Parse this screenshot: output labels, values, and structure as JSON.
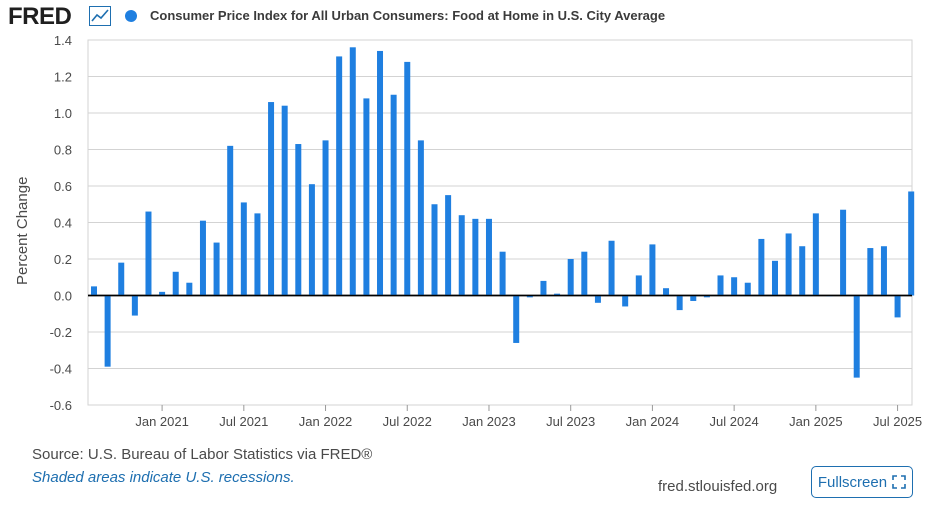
{
  "header": {
    "logo_text": "FRED",
    "logo_icon": "line-chart-icon",
    "series_title": "Consumer Price Index for All Urban Consumers: Food at Home in U.S. City Average"
  },
  "colors": {
    "series": "#1f7fe0",
    "link": "#1e6fb0",
    "grid": "#d3d3d3",
    "zero_line": "#000000"
  },
  "footer": {
    "source": "Source: U.S. Bureau of Labor Statistics via FRED®",
    "recession_note": "Shaded areas indicate U.S. recessions.",
    "site": "fred.stlouisfed.org",
    "fullscreen_label": "Fullscreen",
    "fullscreen_icon": "expand-icon"
  },
  "chart_data": {
    "type": "bar",
    "title": "Consumer Price Index for All Urban Consumers: Food at Home in U.S. City Average",
    "ylabel": "Percent Change",
    "xlabel": "",
    "ylim": [
      -0.6,
      1.4
    ],
    "grid": true,
    "legend": "top-left",
    "yticks": [
      1.4,
      1.2,
      1.0,
      0.8,
      0.6,
      0.4,
      0.2,
      0.0,
      -0.2,
      -0.4,
      -0.6
    ],
    "ytick_labels": [
      "1.4",
      "1.2",
      "1.0",
      "0.8",
      "0.6",
      "0.4",
      "0.2",
      "0.0",
      "-0.2",
      "-0.4",
      "-0.6"
    ],
    "xtick_labels": [
      {
        "date": "2021-01",
        "label": "Jan 2021"
      },
      {
        "date": "2021-07",
        "label": "Jul 2021"
      },
      {
        "date": "2022-01",
        "label": "Jan 2022"
      },
      {
        "date": "2022-07",
        "label": "Jul 2022"
      },
      {
        "date": "2023-01",
        "label": "Jan 2023"
      },
      {
        "date": "2023-07",
        "label": "Jul 2023"
      },
      {
        "date": "2024-01",
        "label": "Jan 2024"
      },
      {
        "date": "2024-07",
        "label": "Jul 2024"
      },
      {
        "date": "2025-01",
        "label": "Jan 2025"
      },
      {
        "date": "2025-07",
        "label": "Jul 2025"
      }
    ],
    "series": [
      {
        "dates": [
          "2020-08",
          "2020-09",
          "2020-10",
          "2020-11",
          "2020-12",
          "2021-01",
          "2021-02",
          "2021-03",
          "2021-04",
          "2021-05",
          "2021-06",
          "2021-07",
          "2021-08",
          "2021-09",
          "2021-10",
          "2021-11",
          "2021-12",
          "2022-01",
          "2022-02",
          "2022-03",
          "2022-04",
          "2022-05",
          "2022-06",
          "2022-07",
          "2022-08",
          "2022-09",
          "2022-10",
          "2022-11",
          "2022-12",
          "2023-01",
          "2023-02",
          "2023-03",
          "2023-04",
          "2023-05",
          "2023-06",
          "2023-07",
          "2023-08",
          "2023-09",
          "2023-10",
          "2023-11",
          "2023-12",
          "2024-01",
          "2024-02",
          "2024-03",
          "2024-04",
          "2024-05",
          "2024-06",
          "2024-07",
          "2024-08",
          "2024-09",
          "2024-10",
          "2024-11",
          "2024-12",
          "2025-01",
          "2025-02",
          "2025-03",
          "2025-04",
          "2025-05",
          "2025-06",
          "2025-07",
          "2025-08"
        ],
        "values": [
          0.05,
          -0.39,
          0.18,
          -0.11,
          0.46,
          0.02,
          0.13,
          0.07,
          0.41,
          0.29,
          0.82,
          0.51,
          0.45,
          1.06,
          1.04,
          0.83,
          0.61,
          0.85,
          1.31,
          1.36,
          1.08,
          1.34,
          1.1,
          1.28,
          0.85,
          0.5,
          0.55,
          0.44,
          0.42,
          0.42,
          0.24,
          -0.26,
          -0.01,
          0.08,
          0.01,
          0.2,
          0.24,
          -0.04,
          0.3,
          -0.06,
          0.11,
          0.28,
          0.04,
          -0.08,
          -0.03,
          -0.01,
          0.11,
          0.1,
          0.07,
          0.31,
          0.19,
          0.34,
          0.27,
          0.45,
          0.0,
          0.47,
          -0.45,
          0.26,
          0.27,
          -0.12,
          0.57
        ]
      }
    ]
  }
}
